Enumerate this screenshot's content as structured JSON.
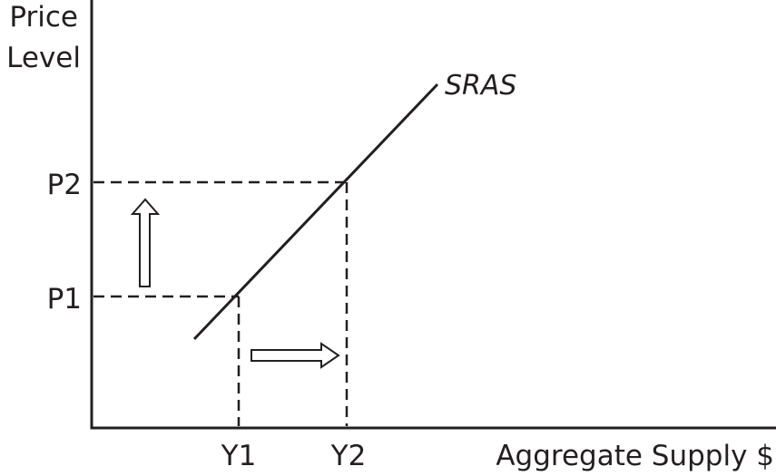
{
  "y_axis": {
    "title_line1": "Price",
    "title_line2": "Level"
  },
  "x_axis": {
    "title": "Aggregate Supply $"
  },
  "curve": {
    "label": "SRAS"
  },
  "price_levels": {
    "p1": "P1",
    "p2": "P2"
  },
  "output_levels": {
    "y1": "Y1",
    "y2": "Y2"
  },
  "colors": {
    "ink": "#231f20",
    "background": "#ffffff"
  },
  "icons": {
    "price_arrow": "up-arrow-icon",
    "output_arrow": "right-arrow-icon"
  }
}
